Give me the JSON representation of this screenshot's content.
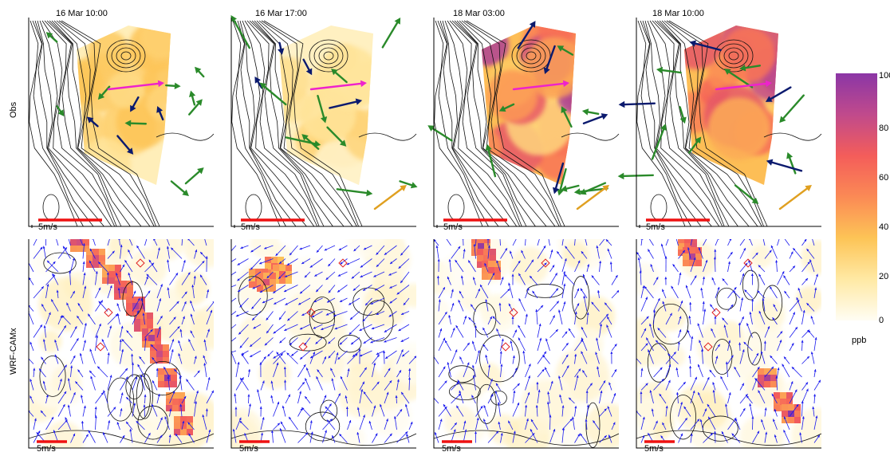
{
  "figure": {
    "row_labels": [
      "Obs",
      "WRF-CAMx"
    ],
    "time_labels": [
      "16 Mar 10:00",
      "16 Mar 17:00",
      "18 Mar 03:00",
      "18 Mar 10:00"
    ],
    "scale_label": "5m/s"
  },
  "colorbar": {
    "ticks": [
      "0",
      "20",
      "40",
      "60",
      "80",
      "100"
    ],
    "unit": "ppb",
    "range": [
      0,
      100
    ],
    "colors": [
      "#fffdf3",
      "#ffe9a4",
      "#fdc456",
      "#fb8a55",
      "#f45d5a",
      "#c04a8c",
      "#8b36a6"
    ]
  },
  "chart_data": {
    "type": "heatmap",
    "rows": [
      "Obs",
      "WRF-CAMx"
    ],
    "columns": [
      "16 Mar 10:00",
      "16 Mar 17:00",
      "18 Mar 03:00",
      "18 Mar 10:00"
    ],
    "colorbar_label": "ppb",
    "colorbar_range": [
      0,
      100
    ],
    "wind_scale": "5m/s",
    "obs_peak_ppb": [
      35,
      30,
      100,
      100
    ],
    "model_peak_ppb": [
      100,
      80,
      100,
      100
    ],
    "colors": {
      "scale_bar": "#ee1111",
      "obs_arrows_green": "#2a8a2a",
      "obs_arrows_navy": "#0b1a6e",
      "obs_arrows_magenta": "#ee22cc",
      "obs_arrows_orange": "#e0a020",
      "model_arrows": "#1a1aee",
      "sites": "#e02020"
    }
  }
}
